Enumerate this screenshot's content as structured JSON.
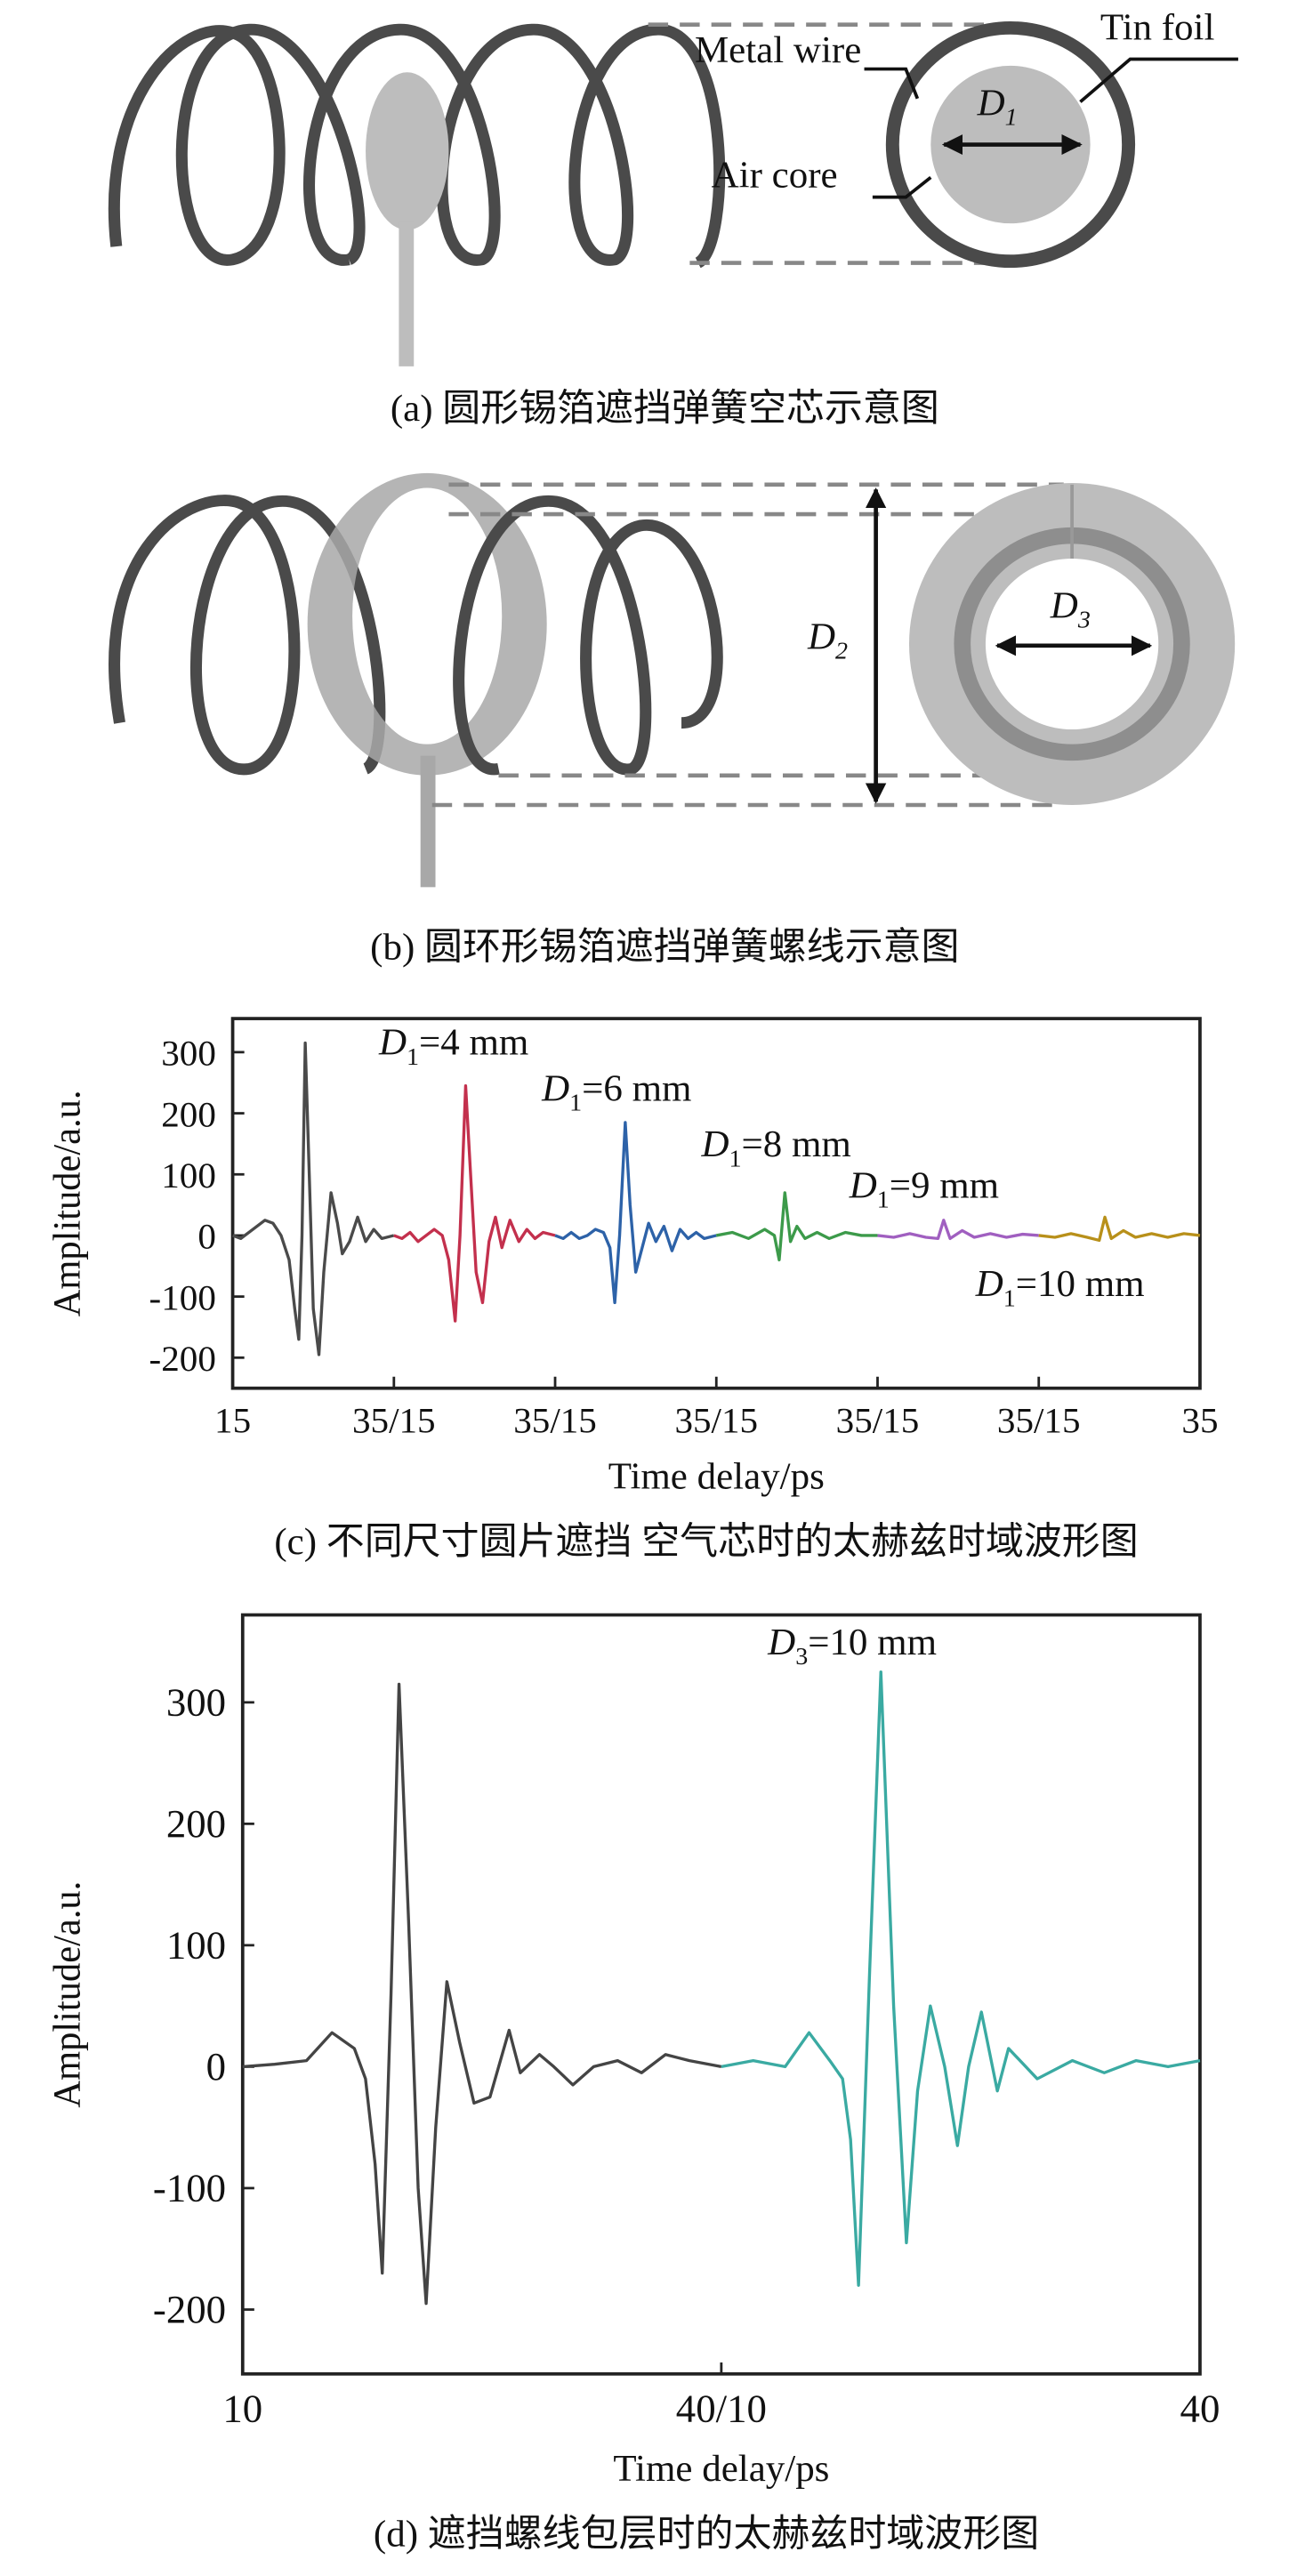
{
  "diagrams": {
    "a": {
      "metal_wire": "Metal wire",
      "tin_foil": "Tin foil",
      "air_core": "Air core",
      "d1": {
        "var": "D",
        "sub": "1"
      },
      "caption": "(a) 圆形锡箔遮挡弹簧空芯示意图"
    },
    "b": {
      "d2": {
        "var": "D",
        "sub": "2"
      },
      "d3": {
        "var": "D",
        "sub": "3"
      },
      "caption": "(b) 圆环形锡箔遮挡弹簧螺线示意图"
    }
  },
  "chart_data": [
    {
      "type": "line",
      "caption": "(c) 不同尺寸圆片遮挡 空气芯时的太赫兹时域波形图",
      "x_label": "Time delay/ps",
      "y_label": "Amplitude/a.u.",
      "xlim": [
        15,
        135
      ],
      "ylim": [
        -250,
        355
      ],
      "xticks": [
        15,
        {
          "value": 35,
          "label": "35/15"
        },
        {
          "value": 55,
          "label": "35/15"
        },
        {
          "value": 75,
          "label": "35/15"
        },
        {
          "value": 95,
          "label": "35/15"
        },
        {
          "value": 115,
          "label": "35/15"
        },
        {
          "value": 135,
          "label": "35"
        }
      ],
      "yticks": [
        -200,
        -100,
        0,
        100,
        200,
        300
      ],
      "series": [
        {
          "name": null,
          "color": "#4a4a4a",
          "x": [
            15,
            16,
            17,
            18,
            19,
            20,
            21,
            22,
            22.7,
            23.2,
            23.6,
            24,
            24.5,
            25,
            25.7,
            26.3,
            27.2,
            28,
            28.6,
            29.5,
            30.5,
            31.5,
            32.5,
            33.5,
            35
          ],
          "values": [
            0,
            -5,
            5,
            15,
            25,
            20,
            0,
            -40,
            -120,
            -170,
            0,
            315,
            100,
            -120,
            -195,
            -60,
            70,
            20,
            -30,
            -10,
            30,
            -10,
            10,
            -5,
            0
          ]
        },
        {
          "name": null,
          "color": "#c3304d",
          "x": [
            35,
            36,
            37,
            38,
            39,
            40,
            41,
            41.8,
            42.6,
            43.2,
            43.9,
            44.6,
            45.2,
            46,
            46.8,
            47.6,
            48.4,
            49.4,
            50.5,
            51.5,
            52.5,
            53.5,
            55
          ],
          "values": [
            0,
            -5,
            5,
            -10,
            0,
            10,
            0,
            -40,
            -140,
            0,
            245,
            80,
            -60,
            -110,
            -10,
            30,
            -20,
            25,
            -10,
            10,
            -5,
            5,
            0
          ]
        },
        {
          "name": null,
          "color": "#2d62a8",
          "x": [
            55,
            56,
            57,
            58,
            59,
            60,
            61,
            61.8,
            62.4,
            63,
            63.7,
            64.3,
            65,
            65.8,
            66.6,
            67.5,
            68.5,
            69.5,
            70.5,
            71.5,
            72.5,
            73.5,
            75
          ],
          "values": [
            0,
            -5,
            5,
            -5,
            0,
            10,
            5,
            -20,
            -110,
            0,
            185,
            50,
            -60,
            -20,
            20,
            -10,
            15,
            -25,
            10,
            -5,
            5,
            -5,
            0
          ]
        },
        {
          "name": null,
          "color": "#3c9a4a",
          "x": [
            75,
            77,
            79,
            81,
            82.2,
            82.8,
            83.5,
            84.2,
            85,
            86,
            87.5,
            89,
            91,
            93,
            95
          ],
          "values": [
            0,
            5,
            -5,
            10,
            0,
            -40,
            70,
            -10,
            15,
            -5,
            5,
            -5,
            5,
            0,
            0
          ]
        },
        {
          "name": null,
          "color": "#a05fc0",
          "x": [
            95,
            97,
            99,
            101,
            102.5,
            103.2,
            104,
            105.5,
            107,
            109,
            111,
            113,
            115
          ],
          "values": [
            0,
            -3,
            3,
            -3,
            -5,
            25,
            -5,
            8,
            -3,
            3,
            -3,
            2,
            0
          ]
        },
        {
          "name": null,
          "color": "#b8901a",
          "x": [
            115,
            117,
            119,
            121,
            122.5,
            123.2,
            124,
            125.5,
            127,
            129,
            131,
            133,
            135
          ],
          "values": [
            0,
            -3,
            3,
            -3,
            -8,
            30,
            -5,
            8,
            -3,
            3,
            -3,
            3,
            0
          ]
        }
      ],
      "annotations": [
        {
          "var": "D",
          "sub": "1",
          "text": "=4 mm"
        },
        {
          "var": "D",
          "sub": "1",
          "text": "=6 mm"
        },
        {
          "var": "D",
          "sub": "1",
          "text": "=8 mm"
        },
        {
          "var": "D",
          "sub": "1",
          "text": "=9 mm"
        },
        {
          "var": "D",
          "sub": "1",
          "text": "=10 mm"
        }
      ]
    },
    {
      "type": "line",
      "caption": "(d) 遮挡螺线包层时的太赫兹时域波形图",
      "x_label": "Time delay/ps",
      "y_label": "Amplitude/a.u.",
      "xlim": [
        10,
        70
      ],
      "ylim": [
        -253,
        372
      ],
      "xticks": [
        10,
        {
          "value": 40,
          "label": "40/10"
        },
        {
          "value": 70,
          "label": "40"
        }
      ],
      "yticks": [
        -200,
        -100,
        0,
        100,
        200,
        300
      ],
      "series": [
        {
          "name": null,
          "color": "#444444",
          "x": [
            10,
            12,
            14,
            15.6,
            17,
            17.7,
            18.3,
            18.75,
            19.3,
            19.8,
            20.4,
            21,
            21.5,
            22.1,
            22.8,
            23.6,
            24.5,
            25.5,
            26.7,
            27.4,
            28.6,
            29.5,
            30.7,
            32,
            33.5,
            35,
            36.5,
            38,
            40
          ],
          "values": [
            0,
            2,
            5,
            28,
            15,
            -10,
            -80,
            -170,
            60,
            315,
            120,
            -100,
            -195,
            -50,
            70,
            20,
            -30,
            -25,
            30,
            -5,
            10,
            0,
            -15,
            0,
            5,
            -5,
            10,
            5,
            0
          ]
        },
        {
          "name": null,
          "color": "#3aaaa2",
          "x": [
            40,
            42,
            44,
            45.5,
            46.8,
            47.6,
            48.1,
            48.6,
            49.3,
            50,
            50.8,
            51.6,
            52.3,
            53.1,
            54,
            54.8,
            55.5,
            56.3,
            57.3,
            58,
            59.8,
            62,
            64,
            66,
            68,
            70
          ],
          "values": [
            0,
            5,
            0,
            28,
            5,
            -10,
            -60,
            -180,
            80,
            325,
            50,
            -145,
            -20,
            50,
            0,
            -65,
            0,
            45,
            -20,
            15,
            -10,
            5,
            -5,
            5,
            0,
            5
          ]
        }
      ],
      "annotations": [
        {
          "var": "D",
          "sub": "3",
          "text": "=10 mm"
        }
      ]
    }
  ]
}
